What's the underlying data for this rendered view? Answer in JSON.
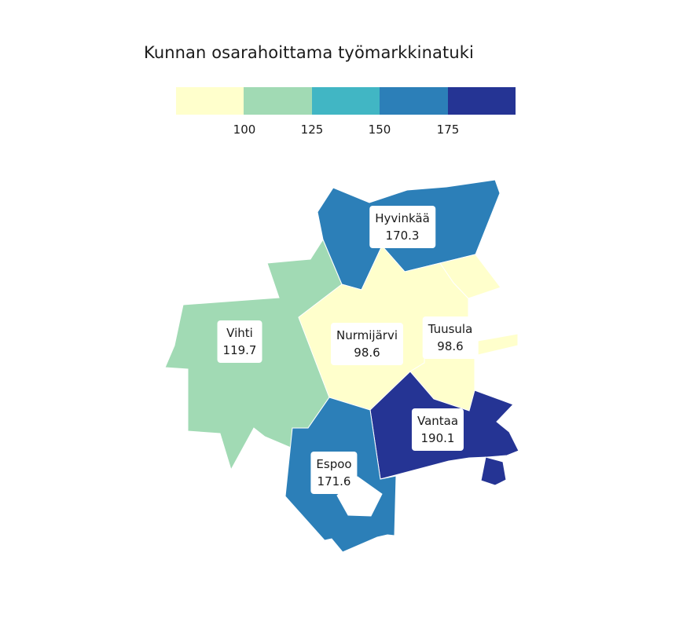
{
  "title": "Kunnan osarahoittama työmarkkinatuki",
  "legend": {
    "colors": [
      "#ffffcc",
      "#a1dab4",
      "#41b6c4",
      "#2c7fb8",
      "#253494"
    ],
    "ticks": [
      "100",
      "125",
      "150",
      "175"
    ]
  },
  "regions": [
    {
      "name": "Hyvinkää",
      "value": "170.3",
      "color": "#2c7fb8"
    },
    {
      "name": "Vihti",
      "value": "119.7",
      "color": "#a1dab4"
    },
    {
      "name": "Nurmijärvi",
      "value": "98.6",
      "color": "#ffffcc"
    },
    {
      "name": "Tuusula",
      "value": "98.6",
      "color": "#ffffcc"
    },
    {
      "name": "Vantaa",
      "value": "190.1",
      "color": "#253494"
    },
    {
      "name": "Espoo",
      "value": "171.6",
      "color": "#2c7fb8"
    }
  ]
}
